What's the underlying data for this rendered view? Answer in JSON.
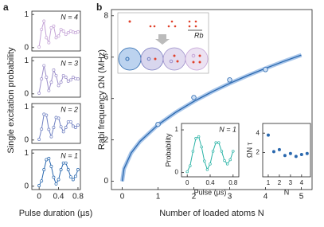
{
  "chart_data": [
    {
      "type": "line",
      "panel": "a",
      "label": "N = 4",
      "color": "#c4a3d6",
      "xlim": [
        -0.15,
        0.85
      ],
      "ylim": [
        -0.1,
        1.1
      ],
      "yticks": [
        0,
        1
      ],
      "x": [
        0,
        0.05,
        0.1,
        0.15,
        0.2,
        0.25,
        0.3,
        0.35,
        0.4,
        0.45,
        0.5,
        0.55,
        0.6,
        0.65,
        0.7,
        0.75,
        0.8
      ],
      "values": [
        0.02,
        0.55,
        0.8,
        0.3,
        0.15,
        0.6,
        0.65,
        0.3,
        0.35,
        0.55,
        0.5,
        0.4,
        0.45,
        0.5,
        0.47,
        0.45,
        0.48
      ]
    },
    {
      "type": "line",
      "label": "N = 3",
      "color": "#9c8fca",
      "xlim": [
        -0.15,
        0.85
      ],
      "ylim": [
        -0.1,
        1.1
      ],
      "yticks": [
        0,
        1
      ],
      "x": [
        0,
        0.05,
        0.1,
        0.15,
        0.2,
        0.25,
        0.3,
        0.35,
        0.4,
        0.45,
        0.5,
        0.55,
        0.6,
        0.65,
        0.7,
        0.75,
        0.8
      ],
      "values": [
        0.02,
        0.45,
        0.85,
        0.5,
        0.1,
        0.35,
        0.72,
        0.55,
        0.25,
        0.35,
        0.55,
        0.5,
        0.38,
        0.42,
        0.5,
        0.46,
        0.45
      ]
    },
    {
      "type": "line",
      "label": "N = 2",
      "color": "#6f80c2",
      "xlim": [
        -0.15,
        0.85
      ],
      "ylim": [
        -0.1,
        1.1
      ],
      "yticks": [
        0,
        1
      ],
      "x": [
        0,
        0.05,
        0.1,
        0.15,
        0.2,
        0.25,
        0.3,
        0.35,
        0.4,
        0.45,
        0.5,
        0.55,
        0.6,
        0.65,
        0.7,
        0.75,
        0.8
      ],
      "values": [
        0.02,
        0.33,
        0.78,
        0.75,
        0.32,
        0.1,
        0.38,
        0.68,
        0.66,
        0.4,
        0.25,
        0.38,
        0.55,
        0.55,
        0.42,
        0.38,
        0.45
      ]
    },
    {
      "type": "line",
      "label": "N = 1",
      "color": "#2a68ae",
      "xlim": [
        -0.15,
        0.85
      ],
      "ylim": [
        -0.1,
        1.1
      ],
      "yticks": [
        0,
        1
      ],
      "xticks": [
        0,
        0.4,
        0.8
      ],
      "xlabel": "Pulse duration (µs)",
      "ylabel": "Single excitation probability",
      "x": [
        0,
        0.05,
        0.1,
        0.15,
        0.2,
        0.25,
        0.3,
        0.35,
        0.4,
        0.45,
        0.5,
        0.55,
        0.6,
        0.65,
        0.7,
        0.75,
        0.8
      ],
      "values": [
        0.02,
        0.16,
        0.5,
        0.8,
        0.84,
        0.6,
        0.27,
        0.07,
        0.2,
        0.5,
        0.7,
        0.7,
        0.5,
        0.28,
        0.2,
        0.3,
        0.5
      ]
    },
    {
      "type": "scatter",
      "panel": "b",
      "color": "#2a68ae",
      "xlabel": "Number of loaded atoms N",
      "ylabel": "Rabi frequency ΩN (MHz)",
      "xlim": [
        -0.3,
        5.3
      ],
      "ylim": [
        -0.4,
        8.3
      ],
      "xticks": [
        0,
        1,
        2,
        3,
        4,
        5
      ],
      "yticks": [
        0,
        2,
        4,
        6,
        8
      ],
      "x": [
        1,
        2,
        3,
        4
      ],
      "values": [
        2.75,
        4.05,
        4.9,
        5.4
      ],
      "fit": {
        "x": [
          0,
          0.05,
          0.25,
          0.5,
          1,
          1.5,
          2,
          2.5,
          3,
          3.5,
          4,
          4.5,
          5
        ],
        "values": [
          0,
          0.61,
          1.37,
          1.93,
          2.73,
          3.34,
          3.86,
          4.32,
          4.73,
          5.11,
          5.46,
          5.79,
          6.1
        ]
      }
    },
    {
      "type": "line",
      "label": "N = 1",
      "color": "#2ab3a6",
      "xlabel": "Pulse (µs)",
      "ylabel": "Probability",
      "xlim": [
        -0.1,
        0.9
      ],
      "ylim": [
        -0.1,
        1.15
      ],
      "xticks": [
        0,
        0.4,
        0.8
      ],
      "yticks": [
        0,
        1
      ],
      "x": [
        0,
        0.05,
        0.1,
        0.15,
        0.2,
        0.25,
        0.3,
        0.35,
        0.4,
        0.45,
        0.5,
        0.55,
        0.6,
        0.65,
        0.7,
        0.75,
        0.8
      ],
      "values": [
        0.02,
        0.16,
        0.5,
        0.8,
        0.84,
        0.6,
        0.27,
        0.07,
        0.2,
        0.5,
        0.7,
        0.7,
        0.5,
        0.28,
        0.2,
        0.3,
        0.5
      ]
    },
    {
      "type": "scatter",
      "color": "#2a68ae",
      "xlabel": "N",
      "ylabel": "ΩN τ",
      "xlim": [
        0.5,
        4.8
      ],
      "ylim": [
        -0.5,
        5
      ],
      "xticks": [
        1,
        2,
        3,
        4
      ],
      "yticks": [
        2,
        4
      ],
      "x": [
        1,
        1.5,
        2,
        2.5,
        3,
        3.5,
        4,
        4.5
      ],
      "values": [
        3.8,
        2.1,
        2.3,
        1.7,
        1.9,
        1.6,
        1.8,
        1.9
      ]
    }
  ],
  "diagram": {
    "label": "Rb"
  }
}
